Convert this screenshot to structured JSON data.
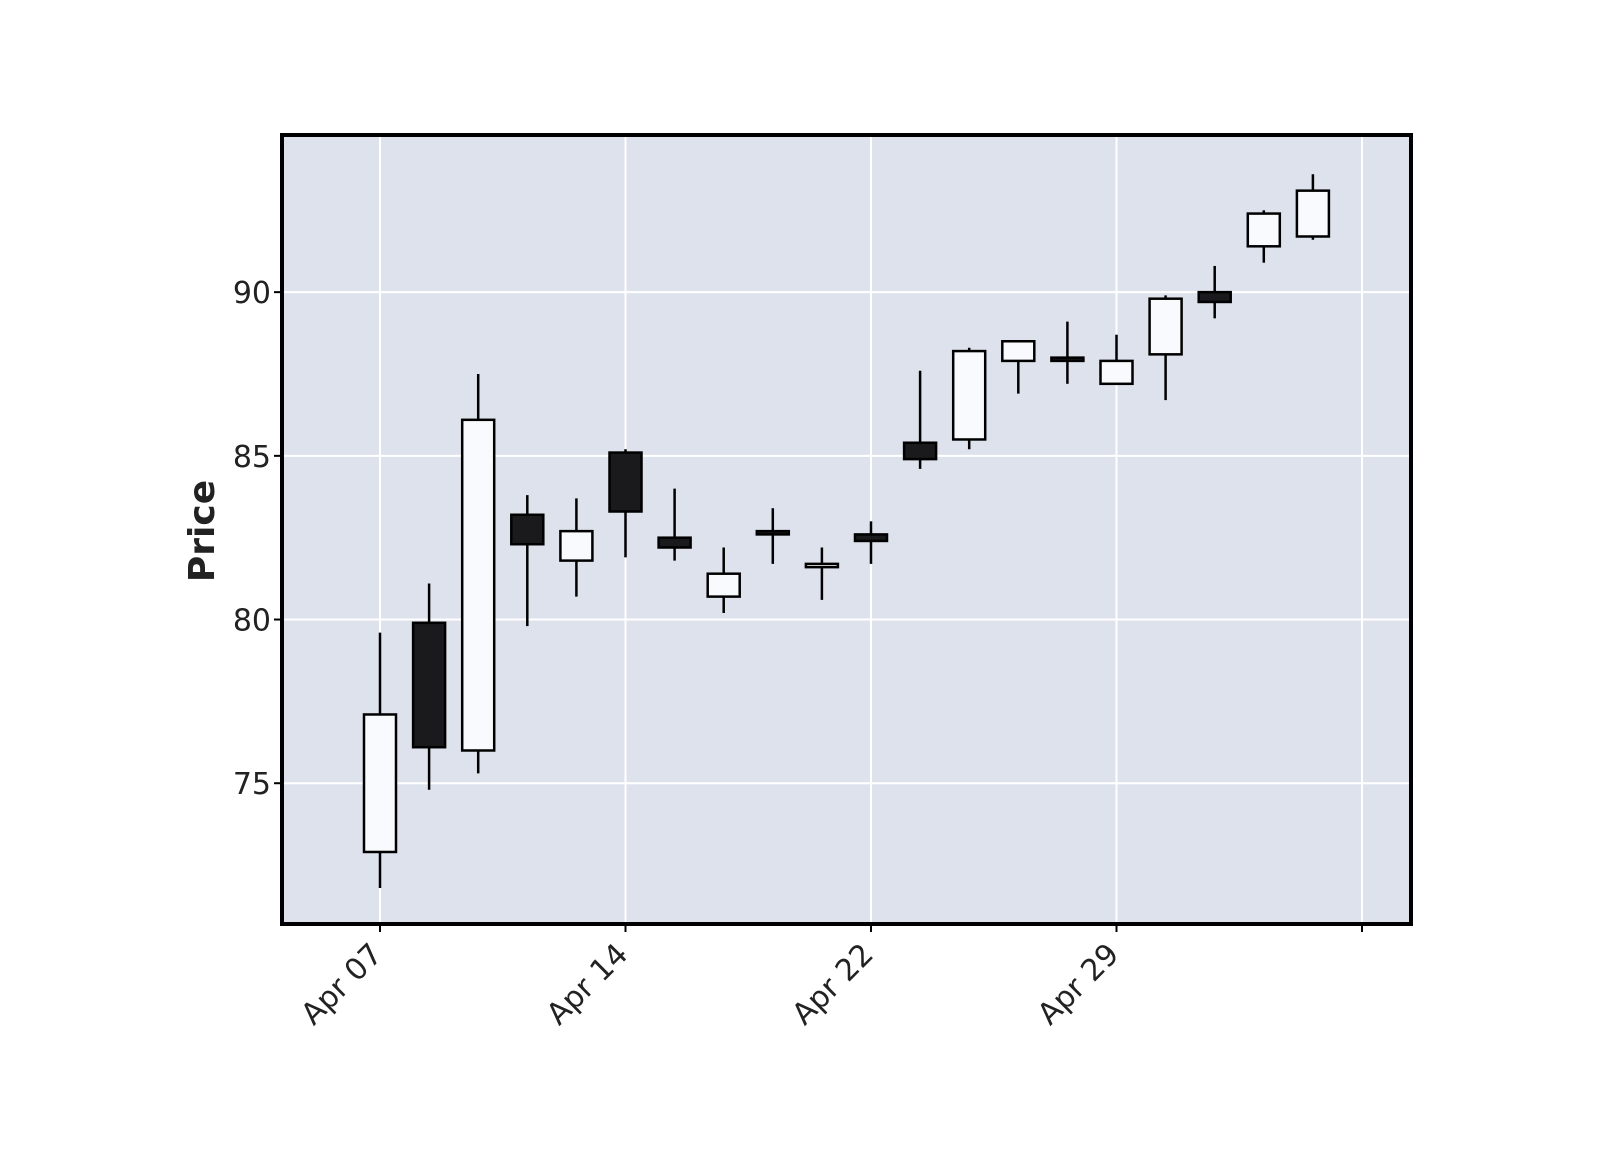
{
  "chart_data": {
    "type": "candlestick",
    "title": "",
    "xlabel": "",
    "ylabel": "Price",
    "ylim": [
      70.7,
      94.8
    ],
    "yticks": [
      75,
      80,
      85,
      90
    ],
    "grid": true,
    "x_tick_labels": [
      {
        "index": 0,
        "label": "Apr 07"
      },
      {
        "index": 5,
        "label": "Apr 14"
      },
      {
        "index": 10,
        "label": "Apr 22"
      },
      {
        "index": 15,
        "label": "Apr 29"
      },
      {
        "index": 20,
        "label": ""
      }
    ],
    "candles": [
      {
        "open": 72.9,
        "high": 79.6,
        "low": 71.8,
        "close": 77.1
      },
      {
        "open": 79.9,
        "high": 81.1,
        "low": 74.8,
        "close": 76.1
      },
      {
        "open": 76.0,
        "high": 87.5,
        "low": 75.3,
        "close": 86.1
      },
      {
        "open": 83.2,
        "high": 83.8,
        "low": 79.8,
        "close": 82.3
      },
      {
        "open": 81.8,
        "high": 83.7,
        "low": 80.7,
        "close": 82.7
      },
      {
        "open": 85.1,
        "high": 85.2,
        "low": 81.9,
        "close": 83.3
      },
      {
        "open": 82.5,
        "high": 84.0,
        "low": 81.8,
        "close": 82.2
      },
      {
        "open": 80.7,
        "high": 82.2,
        "low": 80.2,
        "close": 81.4
      },
      {
        "open": 82.7,
        "high": 83.4,
        "low": 81.7,
        "close": 82.6
      },
      {
        "open": 81.6,
        "high": 82.2,
        "low": 80.6,
        "close": 81.7
      },
      {
        "open": 82.6,
        "high": 83.0,
        "low": 81.7,
        "close": 82.4
      },
      {
        "open": 85.4,
        "high": 87.6,
        "low": 84.6,
        "close": 84.9
      },
      {
        "open": 85.5,
        "high": 88.3,
        "low": 85.2,
        "close": 88.2
      },
      {
        "open": 87.9,
        "high": 88.5,
        "low": 86.9,
        "close": 88.5
      },
      {
        "open": 88.0,
        "high": 89.1,
        "low": 87.2,
        "close": 87.9
      },
      {
        "open": 87.2,
        "high": 88.7,
        "low": 87.2,
        "close": 87.9
      },
      {
        "open": 88.1,
        "high": 89.9,
        "low": 86.7,
        "close": 89.8
      },
      {
        "open": 90.0,
        "high": 90.8,
        "low": 89.2,
        "close": 89.7
      },
      {
        "open": 91.4,
        "high": 92.5,
        "low": 90.9,
        "close": 92.4
      },
      {
        "open": 91.7,
        "high": 93.6,
        "low": 91.6,
        "close": 93.1
      }
    ],
    "colors": {
      "up_fill": "#f8fafd",
      "down_fill": "#1a1a1c",
      "edge": "#000000",
      "plot_background": "#dde2ed",
      "grid": "#ffffff",
      "frame": "#000000",
      "text": "#222222"
    }
  }
}
